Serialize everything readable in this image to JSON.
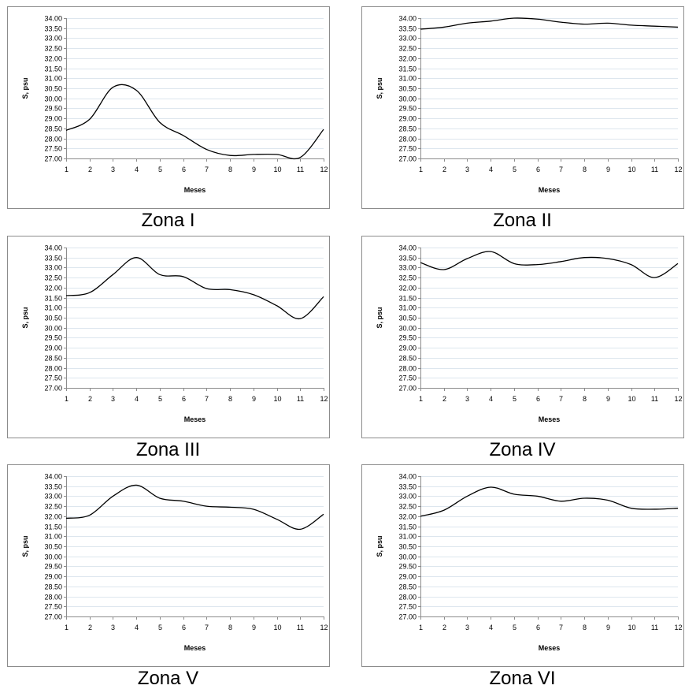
{
  "chart_data": [
    {
      "type": "line",
      "caption": "Zona I",
      "x": [
        1,
        2,
        3,
        4,
        5,
        6,
        7,
        8,
        9,
        10,
        11,
        12
      ],
      "values": [
        28.4,
        28.95,
        30.55,
        30.4,
        28.8,
        28.15,
        27.45,
        27.15,
        27.2,
        27.2,
        27.05,
        28.45
      ],
      "xlabel": "Meses",
      "ylabel": "S, psu",
      "ylim": [
        27.0,
        34.0
      ],
      "ytick_step": 0.5,
      "xticks": [
        "1",
        "2",
        "3",
        "4",
        "5",
        "6",
        "7",
        "8",
        "9",
        "10",
        "11",
        "12"
      ],
      "grid": true
    },
    {
      "type": "line",
      "caption": "Zona II",
      "x": [
        1,
        2,
        3,
        4,
        5,
        6,
        7,
        8,
        9,
        10,
        11,
        12
      ],
      "values": [
        33.45,
        33.55,
        33.75,
        33.85,
        34.0,
        33.95,
        33.8,
        33.7,
        33.75,
        33.65,
        33.6,
        33.55
      ],
      "xlabel": "Meses",
      "ylabel": "S, psu",
      "ylim": [
        27.0,
        34.0
      ],
      "ytick_step": 0.5,
      "xticks": [
        "1",
        "2",
        "3",
        "4",
        "5",
        "6",
        "7",
        "8",
        "9",
        "10",
        "11",
        "12"
      ],
      "grid": true
    },
    {
      "type": "line",
      "caption": "Zona III",
      "x": [
        1,
        2,
        3,
        4,
        5,
        6,
        7,
        8,
        9,
        10,
        11,
        12
      ],
      "values": [
        31.6,
        31.75,
        32.65,
        33.5,
        32.65,
        32.55,
        31.95,
        31.9,
        31.65,
        31.1,
        30.45,
        31.55
      ],
      "xlabel": "Meses",
      "ylabel": "S, psu",
      "ylim": [
        27.0,
        34.0
      ],
      "ytick_step": 0.5,
      "xticks": [
        "1",
        "2",
        "3",
        "4",
        "5",
        "6",
        "7",
        "8",
        "9",
        "10",
        "11",
        "12"
      ],
      "grid": true
    },
    {
      "type": "line",
      "caption": "Zona IV",
      "x": [
        1,
        2,
        3,
        4,
        5,
        6,
        7,
        8,
        9,
        10,
        11,
        12
      ],
      "values": [
        33.25,
        32.9,
        33.45,
        33.8,
        33.2,
        33.15,
        33.3,
        33.5,
        33.45,
        33.15,
        32.5,
        33.2
      ],
      "xlabel": "Meses",
      "ylabel": "S, psu",
      "ylim": [
        27.0,
        34.0
      ],
      "ytick_step": 0.5,
      "xticks": [
        "1",
        "2",
        "3",
        "4",
        "5",
        "6",
        "7",
        "8",
        "9",
        "10",
        "11",
        "12"
      ],
      "grid": true
    },
    {
      "type": "line",
      "caption": "Zona V",
      "x": [
        1,
        2,
        3,
        4,
        5,
        6,
        7,
        8,
        9,
        10,
        11,
        12
      ],
      "values": [
        31.9,
        32.05,
        33.0,
        33.55,
        32.9,
        32.75,
        32.5,
        32.45,
        32.35,
        31.85,
        31.35,
        32.1
      ],
      "xlabel": "Meses",
      "ylabel": "S, psu",
      "ylim": [
        27.0,
        34.0
      ],
      "ytick_step": 0.5,
      "xticks": [
        "1",
        "2",
        "3",
        "4",
        "5",
        "6",
        "7",
        "8",
        "9",
        "10",
        "11",
        "12"
      ],
      "grid": true
    },
    {
      "type": "line",
      "caption": "Zona VI",
      "x": [
        1,
        2,
        3,
        4,
        5,
        6,
        7,
        8,
        9,
        10,
        11,
        12
      ],
      "values": [
        32.0,
        32.3,
        33.0,
        33.45,
        33.1,
        33.0,
        32.75,
        32.9,
        32.8,
        32.4,
        32.35,
        32.4
      ],
      "xlabel": "Meses",
      "ylabel": "S, psu",
      "ylim": [
        27.0,
        34.0
      ],
      "ytick_step": 0.5,
      "xticks": [
        "1",
        "2",
        "3",
        "4",
        "5",
        "6",
        "7",
        "8",
        "9",
        "10",
        "11",
        "12"
      ],
      "grid": true
    }
  ]
}
